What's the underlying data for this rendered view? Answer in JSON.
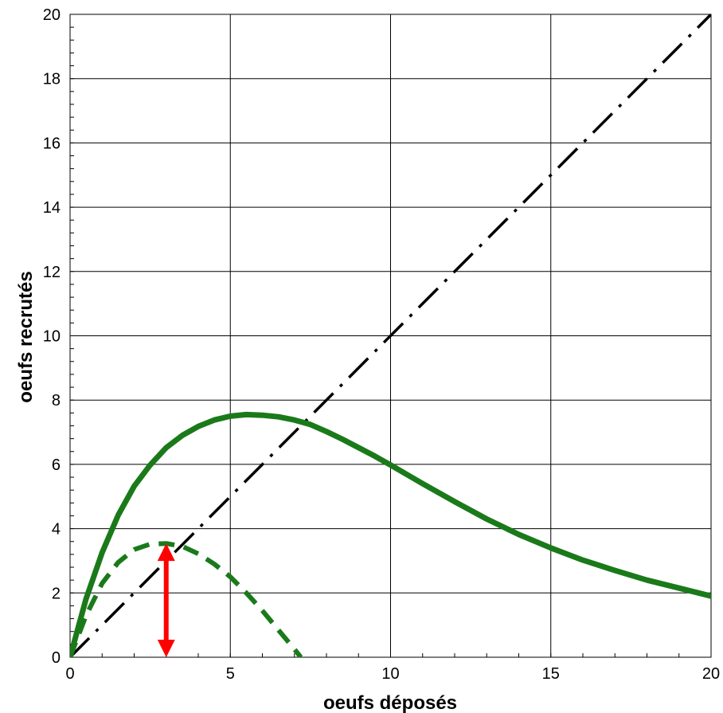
{
  "chart_data": {
    "type": "line",
    "title": "",
    "xlabel": "oeufs déposés",
    "ylabel": "oeufs recrutés",
    "xlim": [
      0,
      20
    ],
    "ylim": [
      0,
      20
    ],
    "x_ticks": [
      0,
      5,
      10,
      15,
      20
    ],
    "y_ticks": [
      0,
      2,
      4,
      6,
      8,
      10,
      12,
      14,
      16,
      18,
      20
    ],
    "grid": true,
    "legend": "none",
    "series": [
      {
        "style": "solid",
        "color": "#1a7a1a",
        "x": [
          0,
          0.5,
          1,
          1.5,
          2,
          2.5,
          3,
          3.5,
          4,
          4.5,
          5,
          5.5,
          6,
          6.5,
          7,
          7.5,
          8,
          8.5,
          9,
          9.5,
          10,
          11,
          12,
          13,
          14,
          15,
          16,
          17,
          18,
          19,
          20
        ],
        "y": [
          0,
          1.82,
          3.26,
          4.42,
          5.32,
          5.98,
          6.52,
          6.9,
          7.18,
          7.38,
          7.5,
          7.55,
          7.53,
          7.48,
          7.38,
          7.24,
          7.02,
          6.78,
          6.52,
          6.26,
          5.98,
          5.4,
          4.84,
          4.3,
          3.82,
          3.4,
          3.02,
          2.7,
          2.4,
          2.15,
          1.9
        ]
      },
      {
        "style": "dashed",
        "color": "#1a7a1a",
        "x": [
          0,
          0.5,
          1,
          1.5,
          2,
          2.5,
          3,
          3.5,
          4,
          4.5,
          5,
          5.5,
          6,
          6.5,
          7,
          7.2
        ],
        "y": [
          0,
          1.3,
          2.3,
          2.95,
          3.35,
          3.52,
          3.54,
          3.45,
          3.22,
          2.9,
          2.5,
          2.0,
          1.45,
          0.85,
          0.25,
          0
        ]
      },
      {
        "style": "dashdot",
        "color": "#000000",
        "x": [
          0,
          20
        ],
        "y": [
          0,
          20
        ]
      }
    ],
    "annotations": [
      {
        "type": "double-arrow",
        "color": "#ff0000",
        "x": 3,
        "y_from": 0,
        "y_to": 3.54
      }
    ]
  }
}
